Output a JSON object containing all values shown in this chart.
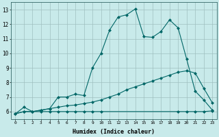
{
  "xlabel": "Humidex (Indice chaleur)",
  "background_color": "#c8eaea",
  "grid_color": "#9fbfbf",
  "line_color": "#006666",
  "xlim": [
    -0.5,
    23.5
  ],
  "ylim": [
    5.5,
    13.5
  ],
  "xticks": [
    0,
    1,
    2,
    3,
    4,
    5,
    6,
    7,
    8,
    9,
    10,
    11,
    12,
    13,
    14,
    15,
    16,
    17,
    18,
    19,
    20,
    21,
    22,
    23
  ],
  "yticks": [
    6,
    7,
    8,
    9,
    10,
    11,
    12,
    13
  ],
  "line1_x": [
    0,
    1,
    2,
    3,
    4,
    5,
    6,
    7,
    8,
    9,
    10,
    11,
    12,
    13,
    14,
    15,
    16,
    17,
    18,
    19,
    20,
    21,
    22,
    23
  ],
  "line1_y": [
    5.85,
    6.3,
    6.0,
    6.1,
    6.2,
    7.0,
    7.0,
    7.2,
    7.1,
    9.0,
    10.0,
    11.6,
    12.5,
    12.65,
    13.05,
    11.15,
    11.1,
    11.5,
    12.3,
    11.75,
    9.6,
    7.4,
    6.8,
    6.1
  ],
  "line2_x": [
    0,
    1,
    2,
    3,
    4,
    5,
    6,
    7,
    8,
    9,
    10,
    11,
    12,
    13,
    14,
    15,
    16,
    17,
    18,
    19,
    20,
    21,
    22,
    23
  ],
  "line2_y": [
    5.85,
    6.0,
    6.0,
    6.1,
    6.2,
    6.3,
    6.4,
    6.45,
    6.55,
    6.65,
    6.8,
    7.0,
    7.2,
    7.5,
    7.7,
    7.9,
    8.1,
    8.3,
    8.5,
    8.7,
    8.8,
    8.65,
    7.6,
    6.6
  ],
  "line3_x": [
    0,
    1,
    2,
    3,
    4,
    5,
    6,
    7,
    8,
    9,
    10,
    19,
    20,
    21,
    22,
    23
  ],
  "line3_y": [
    5.85,
    6.0,
    6.0,
    6.0,
    6.0,
    6.0,
    6.0,
    6.0,
    6.0,
    6.0,
    6.0,
    6.0,
    6.0,
    6.0,
    6.0,
    6.05
  ]
}
